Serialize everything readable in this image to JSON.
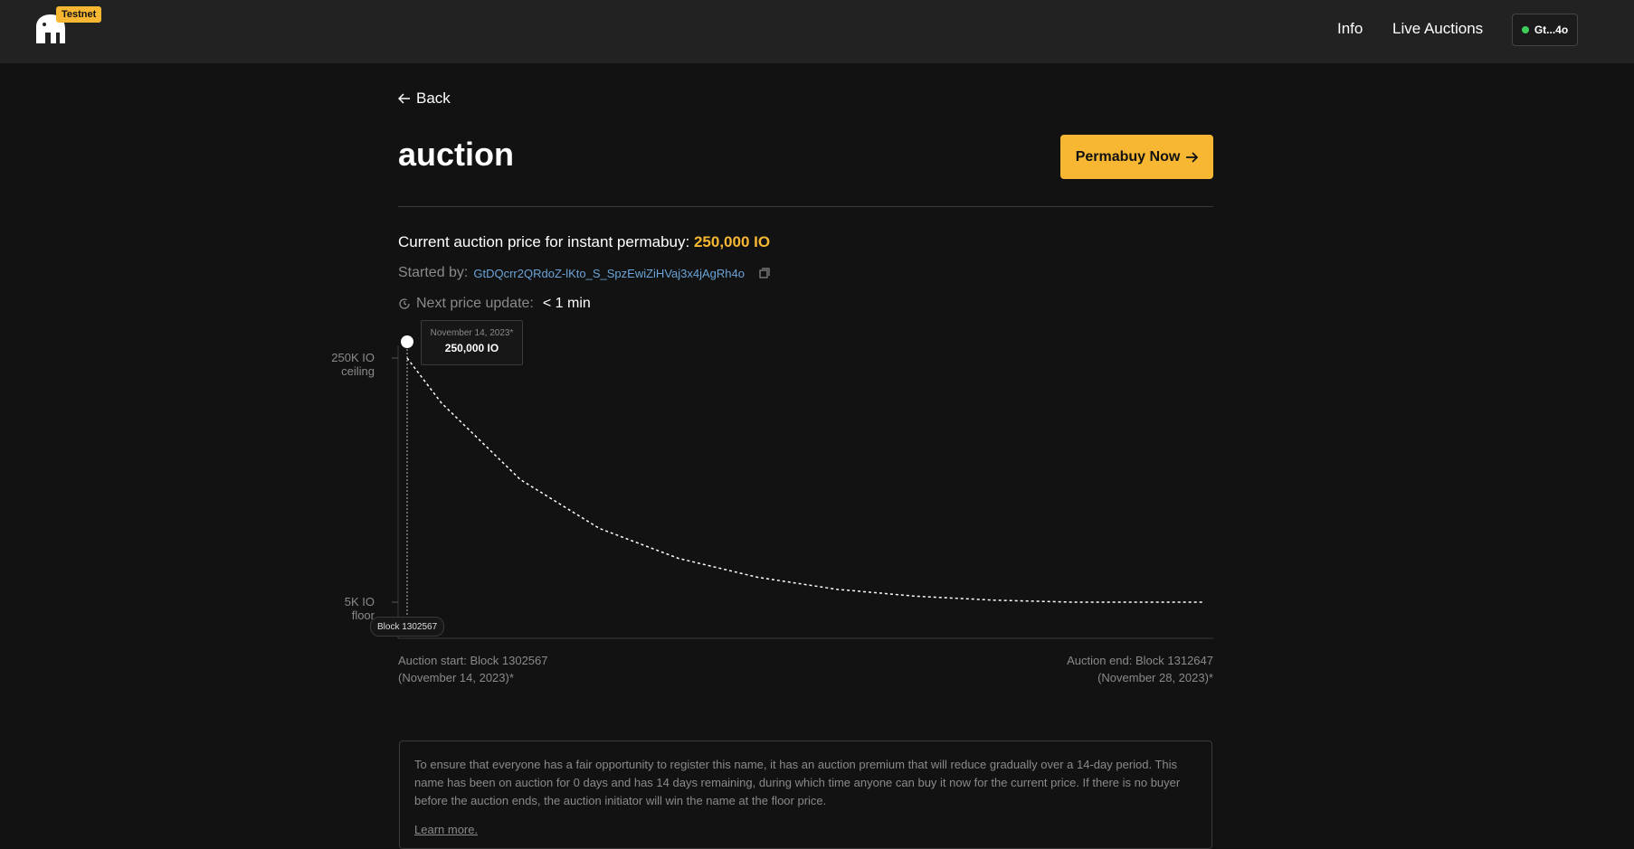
{
  "header": {
    "badge": "Testnet",
    "nav": {
      "info": "Info",
      "live_auctions": "Live Auctions"
    },
    "wallet": {
      "label": "Gt...4o",
      "status_color": "#3ecf5b"
    }
  },
  "page": {
    "back_label": "Back",
    "title": "auction",
    "permabuy_label": "Permabuy Now",
    "price_prefix": "Current auction price for instant permabuy:",
    "price_value": "250,000 IO",
    "started_by_label": "Started by:",
    "started_by_address": "GtDQcrr2QRdoZ-lKto_S_SpzEwiZiHVaj3x4jAgRh4o",
    "next_update_label": "Next price update:",
    "next_update_value": "< 1 min"
  },
  "tooltip": {
    "date": "November 14, 2023*",
    "value": "250,000 IO"
  },
  "block_tag": "Block 1302567",
  "chart_data": {
    "type": "line",
    "x_range": [
      1302567,
      1312647
    ],
    "y_range": [
      5000,
      250000
    ],
    "y_ticks": [
      {
        "value": 250000,
        "label_line1": "250K IO",
        "label_line2": "ceiling"
      },
      {
        "value": 5000,
        "label_line1": "5K IO",
        "label_line2": "floor"
      }
    ],
    "series": [
      {
        "x": [
          1302567,
          1303000,
          1304000,
          1305000,
          1306000,
          1307000,
          1308000,
          1309000,
          1310000,
          1311000,
          1312000,
          1312647
        ],
        "y": [
          250000,
          205000,
          128000,
          79000,
          49000,
          30000,
          18000,
          11000,
          7000,
          5000,
          5000,
          5000
        ]
      }
    ],
    "current_point": {
      "x": 1302567,
      "y": 250000
    },
    "line_color": "#ffffff"
  },
  "auction_start": {
    "line1": "Auction start: Block 1302567",
    "line2": "(November 14, 2023)*"
  },
  "auction_end": {
    "line1": "Auction end: Block 1312647",
    "line2": "(November 28, 2023)*"
  },
  "info": {
    "text": "To ensure that everyone has a fair opportunity to register this name, it has an auction premium that will reduce gradually over a 14-day period. This name has been on auction for 0 days and has 14 days remaining, during which time anyone can buy it now for the current price. If there is no buyer before the auction ends, the auction initiator will win the name at the floor price.",
    "learn_more": "Learn more."
  }
}
